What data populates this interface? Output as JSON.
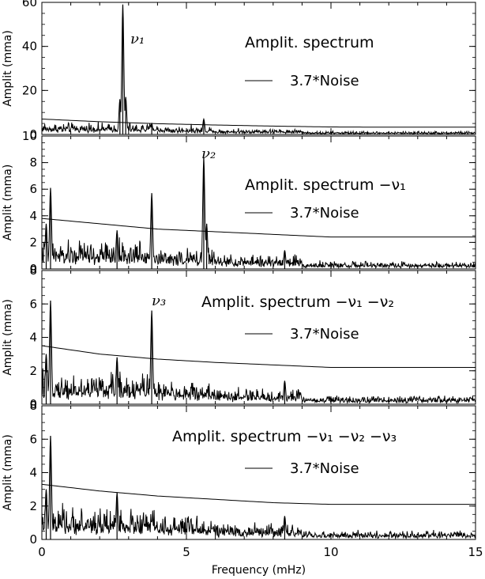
{
  "chart_data": [
    {
      "type": "line",
      "title": "Amplit. spectrum",
      "xlabel": "Frequency (mHz)",
      "ylabel": "Amplit (mma)",
      "xlim": [
        0,
        15
      ],
      "ylim": [
        0,
        60
      ],
      "yticks": [
        0,
        20,
        40,
        60
      ],
      "legend": "3.7*Noise",
      "peak_label": "ν₁",
      "peaks": [
        {
          "x": 2.8,
          "y": 59
        },
        {
          "x": 2.9,
          "y": 17
        },
        {
          "x": 2.7,
          "y": 16
        },
        {
          "x": 3.8,
          "y": 5
        },
        {
          "x": 5.6,
          "y": 7
        }
      ],
      "noise_x": [
        0,
        2,
        4,
        6,
        8,
        10,
        12,
        15
      ],
      "noise_y": [
        7,
        5.8,
        4.9,
        4.3,
        3.8,
        3.4,
        3.3,
        3.3
      ]
    },
    {
      "type": "line",
      "title": "Amplit. spectrum −ν₁",
      "xlabel": "Frequency (mHz)",
      "ylabel": "Amplit (mma)",
      "xlim": [
        0,
        15
      ],
      "ylim": [
        0,
        10
      ],
      "yticks": [
        0,
        2,
        4,
        6,
        8,
        10
      ],
      "legend": "3.7*Noise",
      "peak_label": "ν₂",
      "peaks": [
        {
          "x": 0.3,
          "y": 6.1
        },
        {
          "x": 0.15,
          "y": 3.4
        },
        {
          "x": 2.6,
          "y": 2.9
        },
        {
          "x": 3.8,
          "y": 5.7
        },
        {
          "x": 5.6,
          "y": 8.4
        },
        {
          "x": 5.7,
          "y": 3.4
        },
        {
          "x": 8.4,
          "y": 1.4
        }
      ],
      "noise_x": [
        0,
        2,
        4,
        6,
        8,
        10,
        12,
        15
      ],
      "noise_y": [
        3.8,
        3.4,
        3.0,
        2.8,
        2.6,
        2.4,
        2.4,
        2.4
      ]
    },
    {
      "type": "line",
      "title": "Amplit. spectrum −ν₁ −ν₂",
      "xlabel": "Frequency (mHz)",
      "ylabel": "Amplit (mma)",
      "xlim": [
        0,
        15
      ],
      "ylim": [
        0,
        8
      ],
      "yticks": [
        0,
        2,
        4,
        6,
        8
      ],
      "legend": "3.7*Noise",
      "peak_label": "ν₃",
      "peaks": [
        {
          "x": 0.3,
          "y": 6.2
        },
        {
          "x": 0.15,
          "y": 3.0
        },
        {
          "x": 2.6,
          "y": 2.8
        },
        {
          "x": 3.8,
          "y": 5.6
        },
        {
          "x": 8.4,
          "y": 1.4
        }
      ],
      "noise_x": [
        0,
        2,
        4,
        6,
        8,
        10,
        12,
        15
      ],
      "noise_y": [
        3.5,
        3.0,
        2.7,
        2.5,
        2.35,
        2.2,
        2.2,
        2.2
      ]
    },
    {
      "type": "line",
      "title": "Amplit. spectrum −ν₁ −ν₂ −ν₃",
      "xlabel": "Frequency (mHz)",
      "ylabel": "Amplit (mma)",
      "xlim": [
        0,
        15
      ],
      "ylim": [
        0,
        8
      ],
      "yticks": [
        0,
        2,
        4,
        6,
        8
      ],
      "xticks": [
        0,
        5,
        10,
        15
      ],
      "legend": "3.7*Noise",
      "peak_label": "",
      "peaks": [
        {
          "x": 0.3,
          "y": 6.2
        },
        {
          "x": 0.15,
          "y": 3.0
        },
        {
          "x": 2.6,
          "y": 2.8
        },
        {
          "x": 8.4,
          "y": 1.4
        }
      ],
      "noise_x": [
        0,
        2,
        4,
        6,
        8,
        10,
        12,
        15
      ],
      "noise_y": [
        3.3,
        2.9,
        2.6,
        2.4,
        2.2,
        2.1,
        2.1,
        2.1
      ]
    }
  ]
}
